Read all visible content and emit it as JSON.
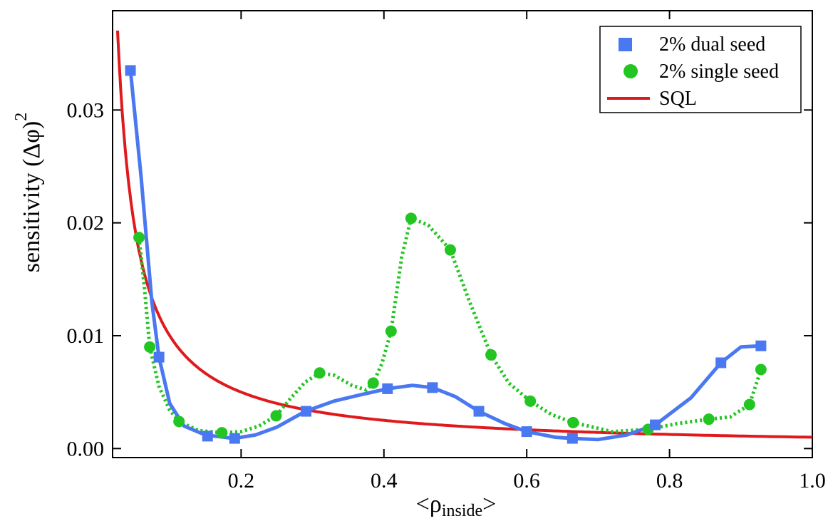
{
  "chart_data": {
    "type": "scatter",
    "xlabel": {
      "prefix": "<ρ",
      "sub": "inside",
      "suffix": ">"
    },
    "ylabel": {
      "main": "sensitivity (Δφ)",
      "sup": "2"
    },
    "xlim": [
      0.02,
      1.0
    ],
    "ylim": [
      -0.0008,
      0.0388
    ],
    "xticks": [
      0.2,
      0.4,
      0.6,
      0.8,
      1.0
    ],
    "xtick_labels": [
      "0.2",
      "0.4",
      "0.6",
      "0.8",
      "1.0"
    ],
    "yticks": [
      0.0,
      0.01,
      0.02,
      0.03
    ],
    "ytick_labels": [
      "0.00",
      "0.01",
      "0.02",
      "0.03"
    ],
    "legend_position": "top-right",
    "series": [
      {
        "name": "2% dual seed",
        "marker": "square",
        "color": "#4a78f0",
        "line": "solid",
        "points": [
          [
            0.045,
            0.0335
          ],
          [
            0.085,
            0.0081
          ],
          [
            0.153,
            0.0011
          ],
          [
            0.191,
            0.0009
          ],
          [
            0.291,
            0.0033
          ],
          [
            0.405,
            0.0053
          ],
          [
            0.468,
            0.0054
          ],
          [
            0.533,
            0.0033
          ],
          [
            0.6,
            0.0015
          ],
          [
            0.664,
            0.0009
          ],
          [
            0.78,
            0.0021
          ],
          [
            0.872,
            0.0076
          ],
          [
            0.928,
            0.0091
          ]
        ],
        "curve": [
          [
            0.045,
            0.0335
          ],
          [
            0.06,
            0.024
          ],
          [
            0.075,
            0.013
          ],
          [
            0.085,
            0.0081
          ],
          [
            0.1,
            0.004
          ],
          [
            0.12,
            0.002
          ],
          [
            0.15,
            0.0012
          ],
          [
            0.19,
            0.0009
          ],
          [
            0.22,
            0.0012
          ],
          [
            0.25,
            0.0019
          ],
          [
            0.29,
            0.0033
          ],
          [
            0.33,
            0.0042
          ],
          [
            0.37,
            0.0048
          ],
          [
            0.405,
            0.0053
          ],
          [
            0.44,
            0.0056
          ],
          [
            0.468,
            0.0054
          ],
          [
            0.5,
            0.0046
          ],
          [
            0.533,
            0.0033
          ],
          [
            0.57,
            0.0022
          ],
          [
            0.6,
            0.0015
          ],
          [
            0.64,
            0.001
          ],
          [
            0.664,
            0.0009
          ],
          [
            0.7,
            0.0008
          ],
          [
            0.74,
            0.0012
          ],
          [
            0.78,
            0.0021
          ],
          [
            0.83,
            0.0045
          ],
          [
            0.872,
            0.0076
          ],
          [
            0.9,
            0.009
          ],
          [
            0.928,
            0.0091
          ]
        ]
      },
      {
        "name": "2% single seed",
        "marker": "circle",
        "color": "#22c522",
        "line": "dotted",
        "points": [
          [
            0.057,
            0.0187
          ],
          [
            0.072,
            0.009
          ],
          [
            0.113,
            0.0024
          ],
          [
            0.173,
            0.0014
          ],
          [
            0.249,
            0.0029
          ],
          [
            0.31,
            0.0067
          ],
          [
            0.385,
            0.0058
          ],
          [
            0.41,
            0.0104
          ],
          [
            0.438,
            0.0204
          ],
          [
            0.493,
            0.0176
          ],
          [
            0.55,
            0.0083
          ],
          [
            0.605,
            0.0042
          ],
          [
            0.665,
            0.0023
          ],
          [
            0.77,
            0.0017
          ],
          [
            0.855,
            0.0026
          ],
          [
            0.912,
            0.0039
          ],
          [
            0.928,
            0.007
          ]
        ],
        "curve": [
          [
            0.057,
            0.0187
          ],
          [
            0.065,
            0.014
          ],
          [
            0.072,
            0.009
          ],
          [
            0.085,
            0.0055
          ],
          [
            0.1,
            0.0034
          ],
          [
            0.113,
            0.0024
          ],
          [
            0.14,
            0.0016
          ],
          [
            0.173,
            0.0014
          ],
          [
            0.2,
            0.0015
          ],
          [
            0.225,
            0.002
          ],
          [
            0.249,
            0.0029
          ],
          [
            0.27,
            0.0045
          ],
          [
            0.29,
            0.0059
          ],
          [
            0.31,
            0.0067
          ],
          [
            0.33,
            0.0065
          ],
          [
            0.355,
            0.0056
          ],
          [
            0.375,
            0.0052
          ],
          [
            0.385,
            0.0058
          ],
          [
            0.397,
            0.0075
          ],
          [
            0.41,
            0.0104
          ],
          [
            0.425,
            0.017
          ],
          [
            0.438,
            0.0204
          ],
          [
            0.462,
            0.0198
          ],
          [
            0.493,
            0.0176
          ],
          [
            0.52,
            0.013
          ],
          [
            0.55,
            0.0083
          ],
          [
            0.575,
            0.0058
          ],
          [
            0.605,
            0.0042
          ],
          [
            0.635,
            0.003
          ],
          [
            0.665,
            0.0023
          ],
          [
            0.72,
            0.0015
          ],
          [
            0.77,
            0.0017
          ],
          [
            0.81,
            0.0022
          ],
          [
            0.855,
            0.0026
          ],
          [
            0.885,
            0.0028
          ],
          [
            0.912,
            0.0039
          ],
          [
            0.928,
            0.007
          ]
        ]
      },
      {
        "name": "SQL",
        "marker": "none",
        "color": "#e0191c",
        "line": "solid",
        "formula": "0.001/x",
        "x_range": [
          0.027,
          1.0
        ]
      }
    ]
  }
}
